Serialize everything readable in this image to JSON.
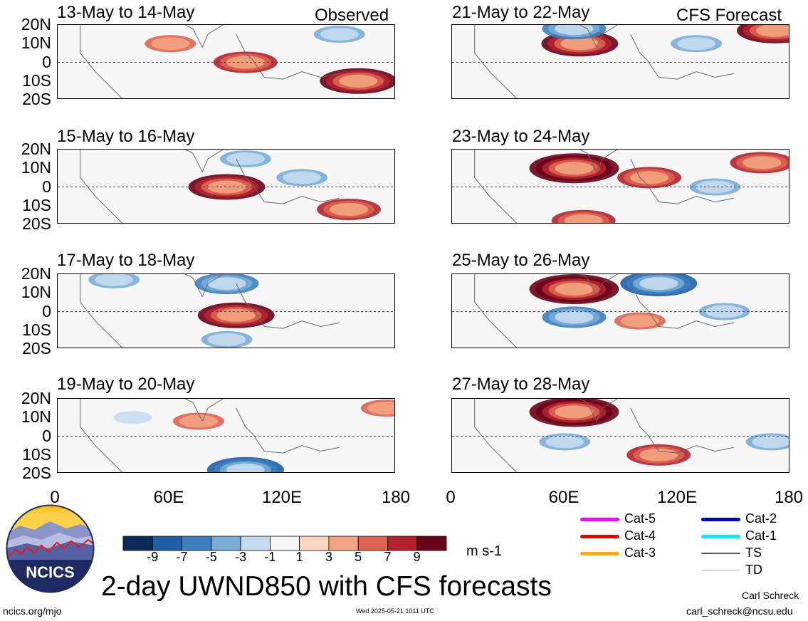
{
  "header": {
    "observed_label": "Observed",
    "forecast_label": "CFS Forecast"
  },
  "chart_data": [
    {
      "type": "heatmap",
      "title": "13-May to 14-May",
      "column": "Observed",
      "variable": "850-hPa zonal wind anomaly",
      "units": "m s-1",
      "ylim": [
        -20,
        20
      ],
      "xlim": [
        0,
        180
      ],
      "features": [
        {
          "lon": 100,
          "lat": 0,
          "value": 7
        },
        {
          "lon": 160,
          "lat": -10,
          "value": 9
        },
        {
          "lon": 60,
          "lat": 10,
          "value": 5
        },
        {
          "lon": 150,
          "lat": 15,
          "value": -5
        }
      ]
    },
    {
      "type": "heatmap",
      "title": "15-May to 16-May",
      "column": "Observed",
      "variable": "850-hPa zonal wind anomaly",
      "units": "m s-1",
      "ylim": [
        -20,
        20
      ],
      "xlim": [
        0,
        180
      ],
      "features": [
        {
          "lon": 90,
          "lat": 0,
          "value": 9
        },
        {
          "lon": 155,
          "lat": -12,
          "value": 7
        },
        {
          "lon": 100,
          "lat": 15,
          "value": -5
        },
        {
          "lon": 130,
          "lat": 5,
          "value": -5
        }
      ]
    },
    {
      "type": "heatmap",
      "title": "17-May to 18-May",
      "column": "Observed",
      "variable": "850-hPa zonal wind anomaly",
      "units": "m s-1",
      "ylim": [
        -20,
        20
      ],
      "xlim": [
        0,
        180
      ],
      "features": [
        {
          "lon": 95,
          "lat": -2,
          "value": 9
        },
        {
          "lon": 90,
          "lat": 15,
          "value": -7
        },
        {
          "lon": 90,
          "lat": -15,
          "value": -5
        },
        {
          "lon": 30,
          "lat": 17,
          "value": -5
        }
      ]
    },
    {
      "type": "heatmap",
      "title": "19-May to 20-May",
      "column": "Observed",
      "variable": "850-hPa zonal wind anomaly",
      "units": "m s-1",
      "ylim": [
        -20,
        20
      ],
      "xlim": [
        0,
        180
      ],
      "features": [
        {
          "lon": 75,
          "lat": 8,
          "value": 5
        },
        {
          "lon": 100,
          "lat": -18,
          "value": -9
        },
        {
          "lon": 175,
          "lat": 15,
          "value": 5
        },
        {
          "lon": 40,
          "lat": 10,
          "value": -3
        }
      ]
    },
    {
      "type": "heatmap",
      "title": "21-May to 22-May",
      "column": "CFS Forecast",
      "variable": "850-hPa zonal wind anomaly",
      "units": "m s-1",
      "ylim": [
        -20,
        20
      ],
      "xlim": [
        0,
        180
      ],
      "features": [
        {
          "lon": 68,
          "lat": 10,
          "value": 9
        },
        {
          "lon": 172,
          "lat": 17,
          "value": 9
        },
        {
          "lon": 130,
          "lat": 10,
          "value": -5
        },
        {
          "lon": 65,
          "lat": 18,
          "value": -7
        }
      ]
    },
    {
      "type": "heatmap",
      "title": "23-May to 24-May",
      "column": "CFS Forecast",
      "variable": "850-hPa zonal wind anomaly",
      "units": "m s-1",
      "ylim": [
        -20,
        20
      ],
      "xlim": [
        0,
        180
      ],
      "features": [
        {
          "lon": 65,
          "lat": 10,
          "value": 11
        },
        {
          "lon": 105,
          "lat": 5,
          "value": 7
        },
        {
          "lon": 165,
          "lat": 13,
          "value": 7
        },
        {
          "lon": 70,
          "lat": -18,
          "value": 7
        },
        {
          "lon": 140,
          "lat": 0,
          "value": -5
        }
      ]
    },
    {
      "type": "heatmap",
      "title": "25-May to 26-May",
      "column": "CFS Forecast",
      "variable": "850-hPa zonal wind anomaly",
      "units": "m s-1",
      "ylim": [
        -20,
        20
      ],
      "xlim": [
        0,
        180
      ],
      "features": [
        {
          "lon": 65,
          "lat": 12,
          "value": 11
        },
        {
          "lon": 110,
          "lat": 15,
          "value": -9
        },
        {
          "lon": 65,
          "lat": -3,
          "value": -7
        },
        {
          "lon": 145,
          "lat": 0,
          "value": -5
        },
        {
          "lon": 100,
          "lat": -5,
          "value": 5
        }
      ]
    },
    {
      "type": "heatmap",
      "title": "27-May to 28-May",
      "column": "CFS Forecast",
      "variable": "850-hPa zonal wind anomaly",
      "units": "m s-1",
      "ylim": [
        -20,
        20
      ],
      "xlim": [
        0,
        180
      ],
      "features": [
        {
          "lon": 65,
          "lat": 13,
          "value": 11
        },
        {
          "lon": 110,
          "lat": -10,
          "value": 7
        },
        {
          "lon": 60,
          "lat": -3,
          "value": -5
        },
        {
          "lon": 170,
          "lat": -3,
          "value": -5
        }
      ]
    }
  ],
  "axes": {
    "y_ticks": [
      "20N",
      "10N",
      "0",
      "10S",
      "20S"
    ],
    "x_ticks": [
      "0",
      "60E",
      "120E",
      "180"
    ]
  },
  "colorbar": {
    "ticks": [
      "-9",
      "-7",
      "-5",
      "-3",
      "-1",
      "1",
      "3",
      "5",
      "7",
      "9"
    ],
    "units": "m s-1",
    "colors": [
      "#0a2a5c",
      "#1f5fa8",
      "#3a80c0",
      "#79acd6",
      "#c6dcee",
      "#f7f7f7",
      "#fbd6c0",
      "#f3a482",
      "#dd6350",
      "#b4222e",
      "#6a0019"
    ]
  },
  "legend": [
    {
      "label": "Cat-5",
      "color": "#ff00ff",
      "icon": "line-swatch"
    },
    {
      "label": "Cat-4",
      "color": "#ee0000",
      "icon": "line-swatch"
    },
    {
      "label": "Cat-3",
      "color": "#ffaa00",
      "icon": "line-swatch"
    },
    {
      "label": "Cat-2",
      "color": "#0000cc",
      "icon": "line-swatch"
    },
    {
      "label": "Cat-1",
      "color": "#00eeee",
      "icon": "line-swatch"
    },
    {
      "label": "TS",
      "color": "#555555",
      "icon": "line-swatch"
    },
    {
      "label": "TD",
      "color": "#aaaaaa",
      "icon": "line-swatch"
    }
  ],
  "logo": {
    "text": "NCICS"
  },
  "footer": {
    "main_title": "2-day UWND850 with CFS forecasts",
    "url": "ncics.org/mjo",
    "timestamp": "Wed 2025-05-21 1011 UTC",
    "author": "Carl Schreck",
    "email": "carl_schreck@ncsu.edu"
  }
}
